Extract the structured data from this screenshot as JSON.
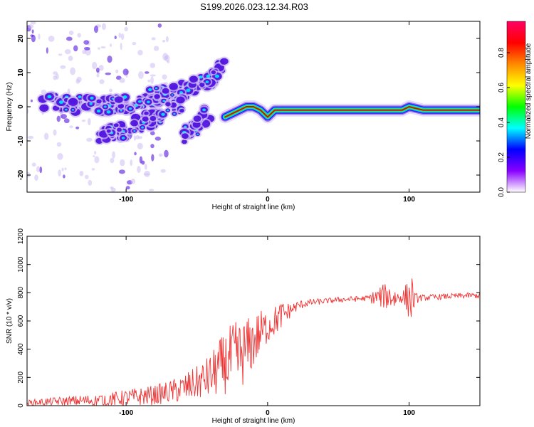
{
  "title": "S199.2026.023.12.34.R03",
  "colors": {
    "snr_line": "#ee3333",
    "ridge": "#cc1111",
    "blob_core": "#00d8ff",
    "blob_mid": "#4400dd",
    "blob_outer": "#cdbdf2"
  },
  "chart_data": [
    {
      "type": "heatmap",
      "panel": "top",
      "title": "S199.2026.023.12.34.R03",
      "xlabel": "Height of straight line (km)",
      "ylabel": "Frequency (Hz)",
      "xlim": [
        -170,
        150
      ],
      "ylim": [
        -25,
        25
      ],
      "xticks": [
        {
          "value": -100,
          "label": "-100"
        },
        {
          "value": 0,
          "label": "0"
        },
        {
          "value": 100,
          "label": "100"
        }
      ],
      "yticks": [
        {
          "value": 20,
          "label": "20"
        },
        {
          "value": 10,
          "label": "10"
        },
        {
          "value": 0,
          "label": "0"
        },
        {
          "value": -10,
          "label": "-10"
        },
        {
          "value": -20,
          "label": "-20"
        }
      ],
      "colorbar": {
        "label": "Normalized spectral amplitude",
        "range": [
          0,
          0.98
        ],
        "ticks": [
          {
            "value": 0.0,
            "label": "0.0"
          },
          {
            "value": 0.2,
            "label": "0.2"
          },
          {
            "value": 0.4,
            "label": "0.4"
          },
          {
            "value": 0.6,
            "label": "0.6"
          },
          {
            "value": 0.8,
            "label": "0.8"
          }
        ],
        "colormap": [
          "#ffffff",
          "#8800ff",
          "#0000ff",
          "#00ffff",
          "#00ff00",
          "#ffff00",
          "#ff8800",
          "#ff0000",
          "#ff0066"
        ]
      },
      "features": [
        {
          "name": "upper-band",
          "points": [
            [
              -160,
              2
            ],
            [
              -140,
              1
            ],
            [
              -120,
              0
            ],
            [
              -100,
              1
            ],
            [
              -80,
              3
            ],
            [
              -60,
              5
            ],
            [
              -50,
              6
            ],
            [
              -40,
              8
            ],
            [
              -35,
              10
            ],
            [
              -30,
              12
            ]
          ],
          "amplitude": 0.3
        },
        {
          "name": "lower-band",
          "points": [
            [
              -120,
              -8
            ],
            [
              -100,
              -7
            ],
            [
              -90,
              -5
            ],
            [
              -80,
              -3
            ],
            [
              -70,
              -1
            ],
            [
              -60,
              1
            ]
          ],
          "amplitude": 0.35
        },
        {
          "name": "lower-band-2",
          "points": [
            [
              -60,
              -8
            ],
            [
              -50,
              -6
            ],
            [
              -45,
              -3
            ],
            [
              -40,
              -1
            ]
          ],
          "amplitude": 0.3
        },
        {
          "name": "ridge",
          "points": [
            [
              -30,
              -3
            ],
            [
              -20,
              -1
            ],
            [
              -15,
              0
            ],
            [
              -10,
              0
            ],
            [
              -5,
              -1
            ],
            [
              0,
              -3
            ],
            [
              5,
              -1
            ],
            [
              10,
              -1
            ],
            [
              20,
              -1
            ],
            [
              40,
              -1
            ],
            [
              60,
              -1
            ],
            [
              80,
              -1
            ],
            [
              95,
              -1
            ],
            [
              100,
              0
            ],
            [
              110,
              -1
            ],
            [
              130,
              -1
            ],
            [
              150,
              -1
            ]
          ],
          "amplitude": 0.9
        }
      ]
    },
    {
      "type": "line",
      "panel": "bottom",
      "xlabel": "Height of straight line (km)",
      "ylabel": "SNR (10 * v/v)",
      "xlim": [
        -170,
        150
      ],
      "ylim": [
        0,
        1200
      ],
      "xticks": [
        {
          "value": -100,
          "label": "-100"
        },
        {
          "value": 0,
          "label": "0"
        },
        {
          "value": 100,
          "label": "100"
        }
      ],
      "yticks": [
        {
          "value": 0,
          "label": "0"
        },
        {
          "value": 200,
          "label": "200"
        },
        {
          "value": 400,
          "label": "400"
        },
        {
          "value": 600,
          "label": "600"
        },
        {
          "value": 800,
          "label": "800"
        },
        {
          "value": 1000,
          "label": "1000"
        },
        {
          "value": 1200,
          "label": "1200"
        }
      ],
      "series": [
        {
          "name": "SNR",
          "color": "#ee3333",
          "x": [
            -170,
            -150,
            -130,
            -110,
            -100,
            -80,
            -70,
            -60,
            -50,
            -40,
            -35,
            -30,
            -25,
            -20,
            -15,
            -10,
            -5,
            0,
            5,
            10,
            15,
            20,
            25,
            30,
            40,
            50,
            60,
            70,
            80,
            85,
            90,
            95,
            100,
            102,
            104,
            110,
            120,
            130,
            140,
            150
          ],
          "values": [
            20,
            30,
            35,
            45,
            55,
            75,
            95,
            120,
            160,
            210,
            260,
            300,
            330,
            350,
            400,
            450,
            520,
            560,
            600,
            640,
            670,
            700,
            720,
            730,
            740,
            750,
            755,
            760,
            770,
            780,
            760,
            770,
            760,
            750,
            760,
            765,
            770,
            775,
            780,
            780
          ],
          "noise": [
            20,
            30,
            40,
            50,
            60,
            70,
            80,
            100,
            120,
            160,
            200,
            220,
            260,
            260,
            220,
            200,
            160,
            120,
            110,
            100,
            60,
            40,
            30,
            25,
            20,
            20,
            20,
            20,
            80,
            100,
            80,
            40,
            150,
            180,
            40,
            20,
            20,
            20,
            20,
            20
          ]
        }
      ]
    }
  ]
}
